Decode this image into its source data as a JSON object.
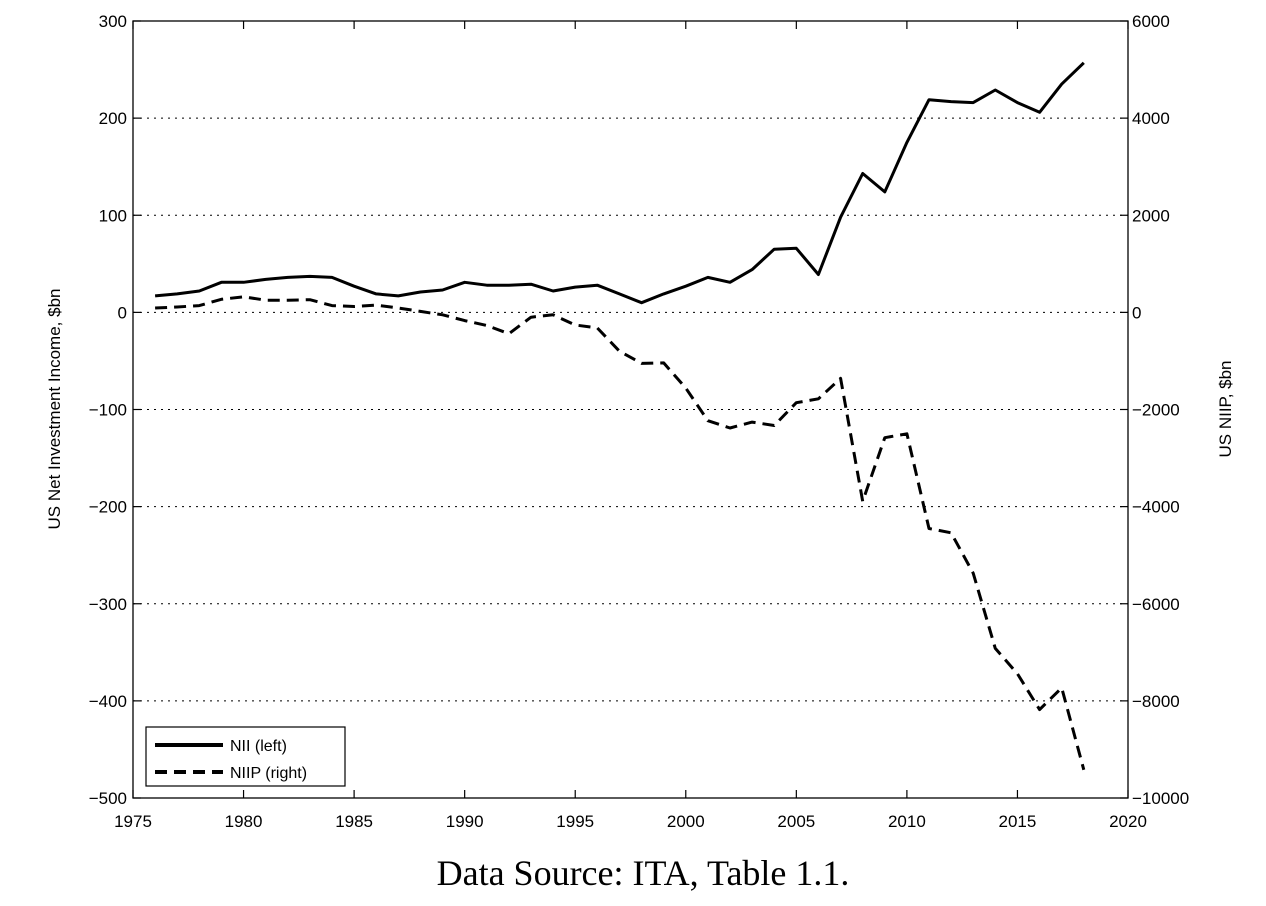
{
  "chart_data": {
    "type": "line",
    "title": "",
    "caption": "Data Source: ITA, Table 1.1.",
    "xlabel": "",
    "ylabel_left": "US Net Investment Income, $bn",
    "ylabel_right": "US NIIP, $bn",
    "xlim": [
      1975,
      2020
    ],
    "ylim_left": [
      -500,
      300
    ],
    "ylim_right": [
      -10000,
      6000
    ],
    "x_ticks": [
      1975,
      1980,
      1985,
      1990,
      1995,
      2000,
      2005,
      2010,
      2015,
      2020
    ],
    "y_ticks_left": [
      -500,
      -400,
      -300,
      -200,
      -100,
      0,
      100,
      200,
      300
    ],
    "y_ticks_left_labels": [
      "−500",
      "−400",
      "−300",
      "−200",
      "−100",
      "0",
      "100",
      "200",
      "300"
    ],
    "y_ticks_right": [
      -10000,
      -8000,
      -6000,
      -4000,
      -2000,
      0,
      2000,
      4000,
      6000
    ],
    "y_ticks_right_labels": [
      "−10000",
      "−8000",
      "−6000",
      "−4000",
      "−2000",
      "0",
      "2000",
      "4000",
      "6000"
    ],
    "grid": "horizontal-dotted",
    "legend_position": "bottom-left",
    "series": [
      {
        "name": "NII (left)",
        "axis": "left",
        "style": "solid",
        "color": "#000000",
        "x": [
          1976,
          1977,
          1978,
          1979,
          1980,
          1981,
          1982,
          1983,
          1984,
          1985,
          1986,
          1987,
          1988,
          1989,
          1990,
          1991,
          1992,
          1993,
          1994,
          1995,
          1996,
          1997,
          1998,
          1999,
          2000,
          2001,
          2002,
          2003,
          2004,
          2005,
          2006,
          2007,
          2008,
          2009,
          2010,
          2011,
          2012,
          2013,
          2014,
          2015,
          2016,
          2017,
          2018
        ],
        "values": [
          17,
          19,
          22,
          31,
          31,
          34,
          36,
          37,
          36,
          27,
          19,
          17,
          21,
          23,
          31,
          28,
          28,
          29,
          22,
          26,
          28,
          19,
          10,
          19,
          27,
          36,
          31,
          44,
          65,
          66,
          39,
          98,
          143,
          124,
          175,
          219,
          217,
          216,
          229,
          216,
          206,
          235,
          257
        ]
      },
      {
        "name": "NIIP (right)",
        "axis": "right",
        "style": "dashed",
        "color": "#000000",
        "x": [
          1976,
          1977,
          1978,
          1979,
          1980,
          1981,
          1982,
          1983,
          1984,
          1985,
          1986,
          1987,
          1988,
          1989,
          1990,
          1991,
          1992,
          1993,
          1994,
          1995,
          1996,
          1997,
          1998,
          1999,
          2000,
          2001,
          2002,
          2003,
          2004,
          2005,
          2006,
          2007,
          2008,
          2009,
          2010,
          2011,
          2012,
          2013,
          2014,
          2015,
          2016,
          2017,
          2018
        ],
        "values": [
          90,
          110,
          140,
          270,
          320,
          250,
          250,
          260,
          140,
          120,
          150,
          90,
          20,
          -50,
          -170,
          -270,
          -440,
          -100,
          -50,
          -260,
          -320,
          -800,
          -1050,
          -1040,
          -1560,
          -2230,
          -2380,
          -2260,
          -2330,
          -1860,
          -1780,
          -1360,
          -3890,
          -2580,
          -2500,
          -4450,
          -4540,
          -5370,
          -6920,
          -7440,
          -8180,
          -7730,
          -9420
        ]
      }
    ]
  }
}
